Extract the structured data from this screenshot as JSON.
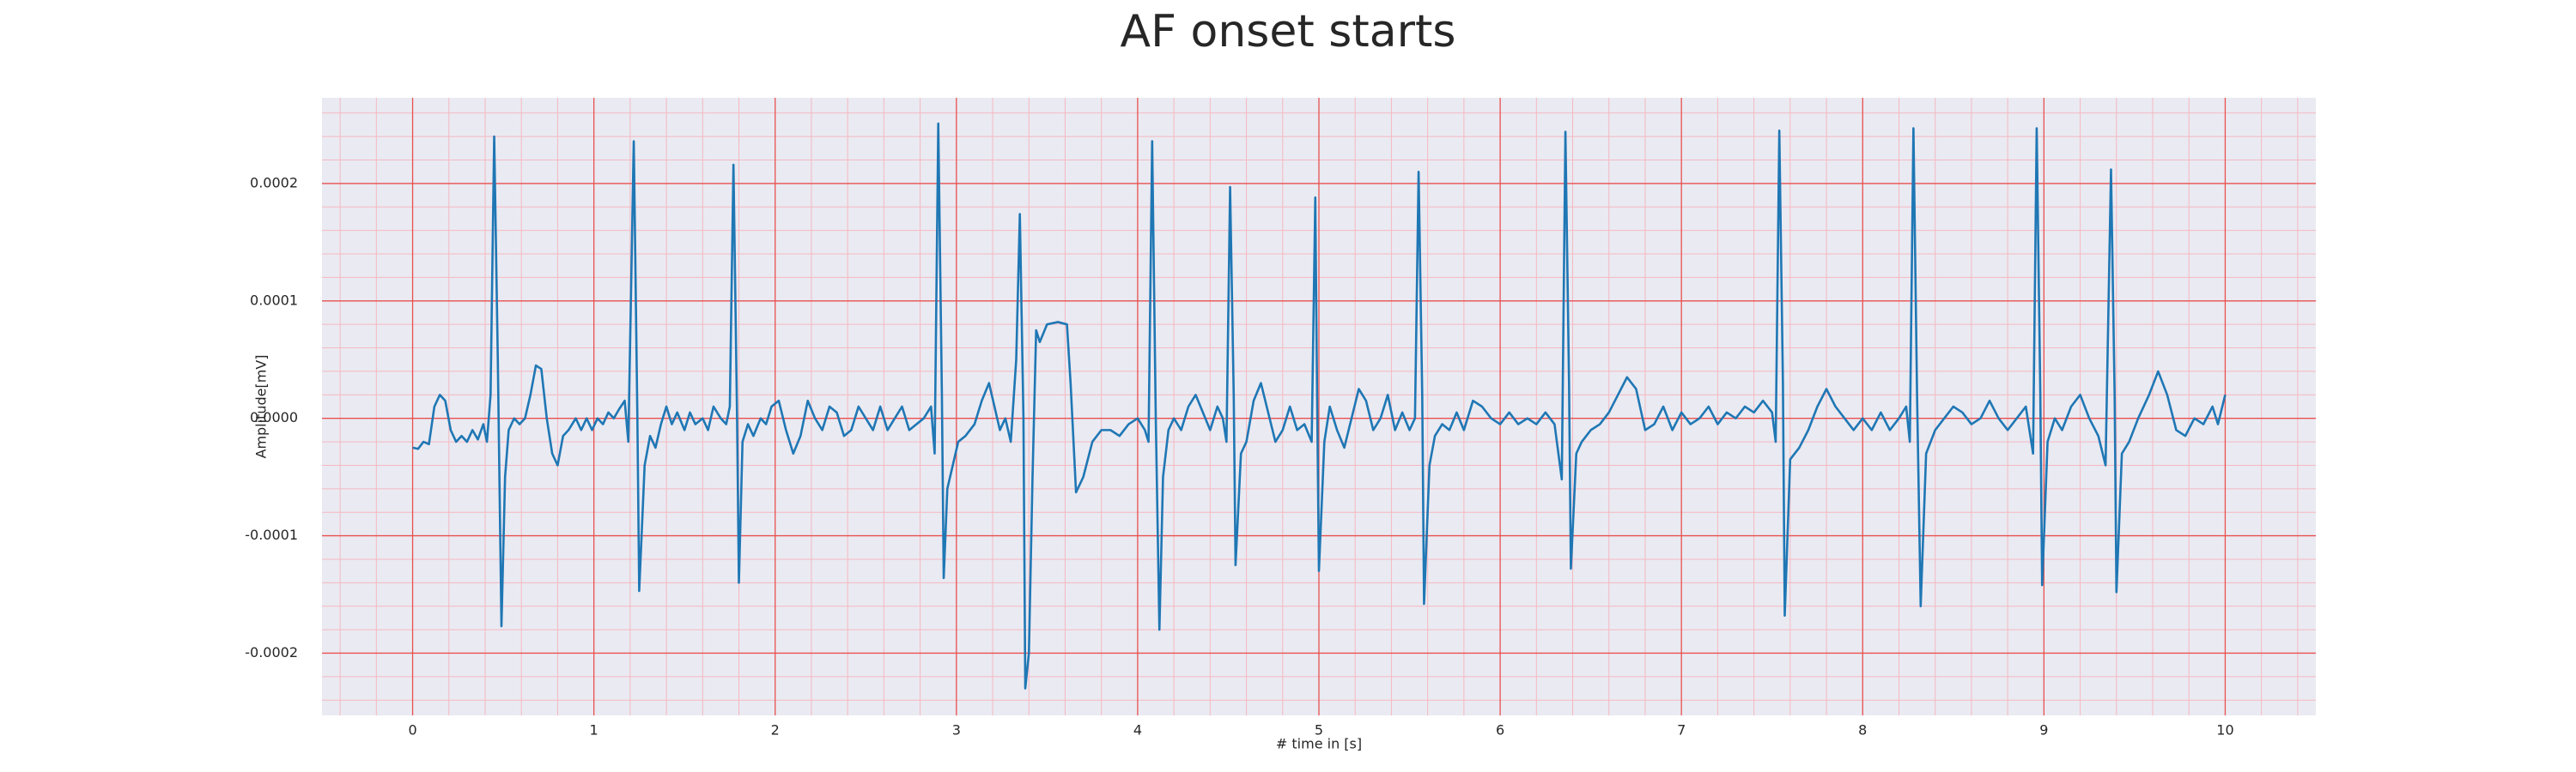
{
  "chart_data": {
    "type": "line",
    "title": "AF onset starts",
    "xlabel": "# time in [s]",
    "ylabel": "Amplitude[mV]",
    "color": "#1f77b4",
    "grid": true,
    "grid_color": "#e8504f",
    "minor_grid_color": "#f5b8c0",
    "background": "#eaeaf2",
    "xlim": [
      -0.5,
      10.5
    ],
    "xticks": [
      0,
      1,
      2,
      3,
      4,
      5,
      6,
      7,
      8,
      9,
      10
    ],
    "ylim": [
      -0.000253,
      0.000273
    ],
    "yticks": [
      -0.0002,
      -0.0001,
      {
        "value": 0,
        "label": "0.0000"
      },
      0.0001,
      0.0002
    ],
    "x": [
      0,
      0.03,
      0.06,
      0.09,
      0.12,
      0.15,
      0.18,
      0.21,
      0.24,
      0.27,
      0.3,
      0.33,
      0.36,
      0.39,
      0.41,
      0.43,
      0.45,
      0.47,
      0.49,
      0.51,
      0.53,
      0.56,
      0.59,
      0.62,
      0.65,
      0.68,
      0.71,
      0.74,
      0.77,
      0.8,
      0.83,
      0.86,
      0.9,
      0.93,
      0.96,
      0.99,
      1.02,
      1.05,
      1.08,
      1.11,
      1.14,
      1.17,
      1.19,
      1.22,
      1.24,
      1.25,
      1.28,
      1.31,
      1.34,
      1.37,
      1.4,
      1.43,
      1.46,
      1.5,
      1.53,
      1.56,
      1.6,
      1.63,
      1.66,
      1.7,
      1.73,
      1.75,
      1.77,
      1.79,
      1.8,
      1.82,
      1.85,
      1.88,
      1.92,
      1.95,
      1.98,
      2.02,
      2.06,
      2.1,
      2.14,
      2.18,
      2.22,
      2.26,
      2.3,
      2.34,
      2.38,
      2.42,
      2.46,
      2.5,
      2.54,
      2.58,
      2.62,
      2.66,
      2.7,
      2.74,
      2.78,
      2.82,
      2.86,
      2.88,
      2.9,
      2.92,
      2.93,
      2.95,
      2.98,
      3.01,
      3.05,
      3.1,
      3.14,
      3.18,
      3.21,
      3.24,
      3.27,
      3.3,
      3.33,
      3.35,
      3.37,
      3.38,
      3.4,
      3.42,
      3.44,
      3.46,
      3.5,
      3.56,
      3.61,
      3.63,
      3.66,
      3.7,
      3.75,
      3.8,
      3.85,
      3.9,
      3.95,
      4.0,
      4.04,
      4.06,
      4.08,
      4.1,
      4.12,
      4.14,
      4.17,
      4.2,
      4.24,
      4.28,
      4.32,
      4.36,
      4.4,
      4.44,
      4.47,
      4.49,
      4.51,
      4.53,
      4.54,
      4.57,
      4.6,
      4.64,
      4.68,
      4.72,
      4.76,
      4.8,
      4.84,
      4.88,
      4.92,
      4.96,
      4.98,
      4.99,
      5.0,
      5.03,
      5.06,
      5.1,
      5.14,
      5.18,
      5.22,
      5.26,
      5.3,
      5.34,
      5.38,
      5.42,
      5.46,
      5.5,
      5.53,
      5.55,
      5.57,
      5.58,
      5.61,
      5.64,
      5.68,
      5.72,
      5.76,
      5.8,
      5.85,
      5.9,
      5.95,
      6.0,
      6.05,
      6.1,
      6.15,
      6.2,
      6.25,
      6.3,
      6.34,
      6.36,
      6.38,
      6.39,
      6.42,
      6.45,
      6.5,
      6.55,
      6.6,
      6.65,
      6.7,
      6.75,
      6.8,
      6.85,
      6.9,
      6.95,
      7.0,
      7.05,
      7.1,
      7.15,
      7.2,
      7.25,
      7.3,
      7.35,
      7.4,
      7.45,
      7.5,
      7.52,
      7.54,
      7.56,
      7.57,
      7.6,
      7.65,
      7.7,
      7.75,
      7.8,
      7.85,
      7.9,
      7.95,
      8.0,
      8.05,
      8.1,
      8.15,
      8.2,
      8.24,
      8.26,
      8.28,
      8.3,
      8.32,
      8.35,
      8.4,
      8.45,
      8.5,
      8.55,
      8.6,
      8.65,
      8.7,
      8.75,
      8.8,
      8.85,
      8.9,
      8.94,
      8.96,
      8.98,
      8.99,
      9.02,
      9.06,
      9.1,
      9.15,
      9.2,
      9.25,
      9.3,
      9.34,
      9.37,
      9.39,
      9.4,
      9.43,
      9.47,
      9.52,
      9.58,
      9.63,
      9.68,
      9.73,
      9.78,
      9.83,
      9.88,
      9.93,
      9.96,
      10.0
    ],
    "values": [
      -2.5e-05,
      -2.6e-05,
      -2e-05,
      -2.2e-05,
      1e-05,
      2e-05,
      1.5e-05,
      -1e-05,
      -2e-05,
      -1.5e-05,
      -2e-05,
      -1e-05,
      -1.8e-05,
      -5e-06,
      -2e-05,
      2e-05,
      0.00024,
      5e-05,
      -0.000177,
      -5e-05,
      -1e-05,
      0,
      -5e-06,
      0,
      2e-05,
      4.5e-05,
      4.2e-05,
      0,
      -3e-05,
      -4e-05,
      -1.5e-05,
      -1e-05,
      0,
      -1e-05,
      0,
      -1e-05,
      0,
      -5e-06,
      5e-06,
      0,
      8e-06,
      1.5e-05,
      -2e-05,
      0.000236,
      0,
      -0.000147,
      -4e-05,
      -1.5e-05,
      -2.5e-05,
      -5e-06,
      1e-05,
      -5e-06,
      5e-06,
      -1e-05,
      5e-06,
      -5e-06,
      0,
      -1e-05,
      1e-05,
      0,
      -5e-06,
      1e-05,
      0.000216,
      0,
      -0.00014,
      -2e-05,
      -5e-06,
      -1.5e-05,
      0,
      -5e-06,
      1e-05,
      1.5e-05,
      -1e-05,
      -3e-05,
      -1.5e-05,
      1.5e-05,
      0,
      -1e-05,
      1e-05,
      5e-06,
      -1.5e-05,
      -1e-05,
      1e-05,
      0,
      -1e-05,
      1e-05,
      -1e-05,
      0,
      1e-05,
      -1e-05,
      -5e-06,
      0,
      1e-05,
      -3e-05,
      0.000251,
      2e-05,
      -0.000136,
      -6e-05,
      -4e-05,
      -2e-05,
      -1.5e-05,
      -5e-06,
      1.5e-05,
      3e-05,
      1e-05,
      -1e-05,
      0,
      -2e-05,
      5e-05,
      0.000174,
      0,
      -0.00023,
      -0.0002,
      -5e-05,
      7.5e-05,
      6.5e-05,
      8e-05,
      8.2e-05,
      8e-05,
      3e-05,
      -6.3e-05,
      -5e-05,
      -2e-05,
      -1e-05,
      -1e-05,
      -1.5e-05,
      -5e-06,
      0,
      -1e-05,
      -2e-05,
      0.000236,
      0,
      -0.00018,
      -5e-05,
      -1e-05,
      0,
      -1e-05,
      1e-05,
      2e-05,
      5e-06,
      -1e-05,
      1e-05,
      0,
      -2e-05,
      0.000197,
      2e-05,
      -0.000125,
      -3e-05,
      -2e-05,
      1.5e-05,
      3e-05,
      5e-06,
      -2e-05,
      -1e-05,
      1e-05,
      -1e-05,
      -5e-06,
      -2e-05,
      0.000188,
      2e-05,
      -0.00013,
      -2e-05,
      1e-05,
      -1e-05,
      -2.5e-05,
      0,
      2.5e-05,
      1.5e-05,
      -1e-05,
      0,
      2e-05,
      -1e-05,
      5e-06,
      -1e-05,
      0,
      0.00021,
      2e-05,
      -0.000158,
      -4e-05,
      -1.5e-05,
      -5e-06,
      -1e-05,
      5e-06,
      -1e-05,
      1.5e-05,
      1e-05,
      0,
      -5e-06,
      5e-06,
      -5e-06,
      0,
      -5e-06,
      5e-06,
      -5e-06,
      -5.2e-05,
      0.000244,
      3e-05,
      -0.000128,
      -3e-05,
      -2e-05,
      -1e-05,
      -5e-06,
      5e-06,
      2e-05,
      3.5e-05,
      2.5e-05,
      -1e-05,
      -5e-06,
      1e-05,
      -1e-05,
      5e-06,
      -5e-06,
      0,
      1e-05,
      -5e-06,
      5e-06,
      0,
      1e-05,
      5e-06,
      1.5e-05,
      5e-06,
      -2e-05,
      0.000245,
      3e-05,
      -0.000168,
      -3.5e-05,
      -2.5e-05,
      -1e-05,
      1e-05,
      2.5e-05,
      1e-05,
      0,
      -1e-05,
      0,
      -1e-05,
      5e-06,
      -1e-05,
      0,
      1e-05,
      -2e-05,
      0.000247,
      2e-05,
      -0.00016,
      -3e-05,
      -1e-05,
      0,
      1e-05,
      5e-06,
      -5e-06,
      0,
      1.5e-05,
      0,
      -1e-05,
      0,
      1e-05,
      -3e-05,
      0.000247,
      2e-05,
      -0.000142,
      -2e-05,
      0,
      -1e-05,
      1e-05,
      2e-05,
      0,
      -1.5e-05,
      -4e-05,
      0.000212,
      2e-05,
      -0.000148,
      -3e-05,
      -2e-05,
      0,
      2e-05,
      4e-05,
      2e-05,
      -1e-05,
      -1.5e-05,
      0,
      -5e-06,
      1e-05,
      -5e-06,
      2e-05
    ]
  }
}
